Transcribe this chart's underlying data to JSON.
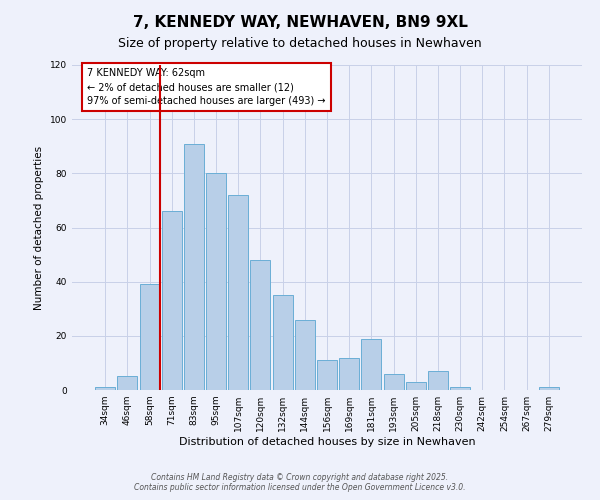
{
  "title": "7, KENNEDY WAY, NEWHAVEN, BN9 9XL",
  "subtitle": "Size of property relative to detached houses in Newhaven",
  "xlabel": "Distribution of detached houses by size in Newhaven",
  "ylabel": "Number of detached properties",
  "bar_labels": [
    "34sqm",
    "46sqm",
    "58sqm",
    "71sqm",
    "83sqm",
    "95sqm",
    "107sqm",
    "120sqm",
    "132sqm",
    "144sqm",
    "156sqm",
    "169sqm",
    "181sqm",
    "193sqm",
    "205sqm",
    "218sqm",
    "230sqm",
    "242sqm",
    "254sqm",
    "267sqm",
    "279sqm"
  ],
  "bar_values": [
    1,
    5,
    39,
    66,
    91,
    80,
    72,
    48,
    35,
    26,
    11,
    12,
    19,
    6,
    3,
    7,
    1,
    0,
    0,
    0,
    1
  ],
  "bar_color": "#b8cfe8",
  "bar_edge_color": "#6aaed6",
  "vline_color": "#cc0000",
  "annotation_title": "7 KENNEDY WAY: 62sqm",
  "annotation_line1": "← 2% of detached houses are smaller (12)",
  "annotation_line2": "97% of semi-detached houses are larger (493) →",
  "box_edge_color": "#cc0000",
  "ylim": [
    0,
    120
  ],
  "yticks": [
    0,
    20,
    40,
    60,
    80,
    100,
    120
  ],
  "footer1": "Contains HM Land Registry data © Crown copyright and database right 2025.",
  "footer2": "Contains public sector information licensed under the Open Government Licence v3.0.",
  "bg_color": "#eef1fb",
  "grid_color": "#c8d0e8",
  "title_fontsize": 11,
  "subtitle_fontsize": 9
}
